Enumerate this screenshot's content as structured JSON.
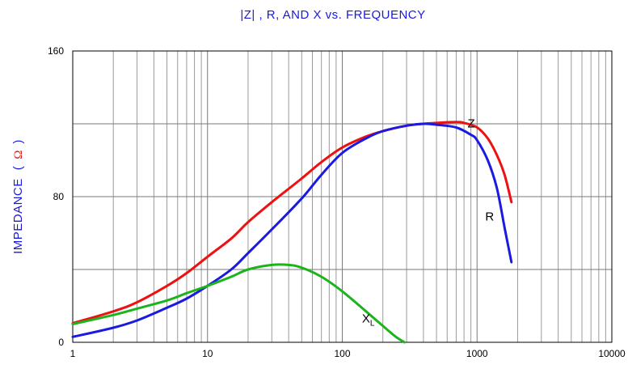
{
  "chart_data": {
    "type": "line",
    "title": "|Z| , R, AND X vs. FREQUENCY",
    "ylabel": {
      "text": "IMPEDANCE",
      "open": "(",
      "symbol": "Ω",
      "close": ")"
    },
    "xlabel": "",
    "x_scale": "log",
    "xlim": [
      1,
      10000
    ],
    "ylim": [
      0,
      160
    ],
    "x_ticks": [
      "1",
      "10",
      "100",
      "1000",
      "10000"
    ],
    "y_ticks": [
      "0",
      "80",
      "160"
    ],
    "y_grid": [
      0,
      40,
      80,
      120,
      160
    ],
    "grid": true,
    "legend": "none",
    "series": [
      {
        "color": "#ee1111",
        "points": [
          [
            1,
            10.5
          ],
          [
            2,
            17
          ],
          [
            3,
            22
          ],
          [
            5,
            31
          ],
          [
            7,
            38
          ],
          [
            10,
            47
          ],
          [
            15,
            57
          ],
          [
            20,
            66
          ],
          [
            30,
            77
          ],
          [
            50,
            90
          ],
          [
            70,
            99
          ],
          [
            100,
            107
          ],
          [
            150,
            113
          ],
          [
            200,
            116
          ],
          [
            300,
            119
          ],
          [
            400,
            120
          ],
          [
            500,
            120.5
          ],
          [
            700,
            121
          ],
          [
            800,
            120.5
          ],
          [
            1000,
            118
          ],
          [
            1200,
            112
          ],
          [
            1400,
            103
          ],
          [
            1600,
            92
          ],
          [
            1800,
            77
          ]
        ]
      },
      {
        "color": "#1a1ae0",
        "points": [
          [
            1,
            3
          ],
          [
            2,
            8
          ],
          [
            3,
            12
          ],
          [
            5,
            19
          ],
          [
            7,
            24
          ],
          [
            10,
            31
          ],
          [
            15,
            40
          ],
          [
            20,
            49
          ],
          [
            30,
            62
          ],
          [
            50,
            79
          ],
          [
            70,
            92
          ],
          [
            100,
            104
          ],
          [
            150,
            112
          ],
          [
            200,
            116
          ],
          [
            300,
            119
          ],
          [
            400,
            120
          ],
          [
            500,
            119.5
          ],
          [
            700,
            118
          ],
          [
            900,
            114
          ],
          [
            1000,
            111
          ],
          [
            1200,
            100
          ],
          [
            1400,
            85
          ],
          [
            1600,
            63
          ],
          [
            1800,
            44
          ]
        ]
      },
      {
        "color": "#1cb31c",
        "points": [
          [
            1,
            10
          ],
          [
            2,
            15
          ],
          [
            3,
            18.5
          ],
          [
            5,
            23
          ],
          [
            7,
            27
          ],
          [
            10,
            31
          ],
          [
            15,
            36
          ],
          [
            20,
            40
          ],
          [
            30,
            42.5
          ],
          [
            40,
            42.5
          ],
          [
            50,
            41
          ],
          [
            70,
            36
          ],
          [
            100,
            28
          ],
          [
            150,
            17
          ],
          [
            200,
            9
          ],
          [
            250,
            3
          ],
          [
            290,
            0
          ]
        ]
      }
    ],
    "annotations": [
      {
        "text": "Z",
        "x": 850,
        "y": 118
      },
      {
        "text": "R",
        "x": 1150,
        "y": 67
      },
      {
        "text": "X",
        "sub": "L",
        "x": 140,
        "y": 11
      }
    ]
  }
}
